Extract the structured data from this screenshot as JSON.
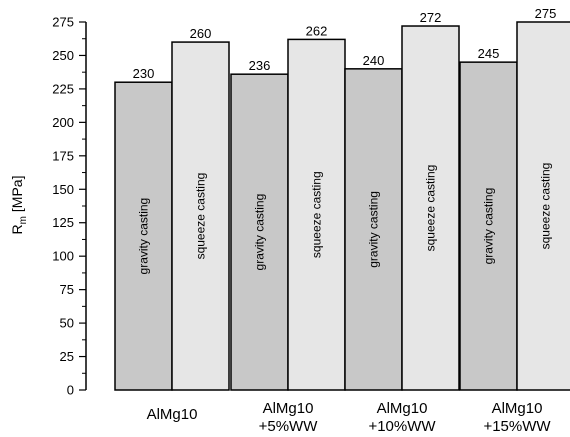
{
  "chart_data": {
    "type": "bar",
    "categories": [
      [
        "AlMg10"
      ],
      [
        "AlMg10",
        "+5%WW"
      ],
      [
        "AlMg10",
        "+10%WW"
      ],
      [
        "AlMg10",
        "+15%WW"
      ]
    ],
    "series": [
      {
        "name": "gravity casting",
        "values": [
          230,
          236,
          240,
          245
        ],
        "color": "#c8c8c8"
      },
      {
        "name": "squeeze casting",
        "values": [
          260,
          262,
          272,
          275
        ],
        "color": "#e6e6e6"
      }
    ],
    "ylabel": {
      "main": "R",
      "sub": "m",
      "unit": " [MPa]"
    },
    "ylim": [
      0,
      275
    ],
    "yticks": [
      0,
      25,
      50,
      75,
      100,
      125,
      150,
      175,
      200,
      225,
      250,
      275
    ],
    "grid": false,
    "legend": "none (series names written inside bars)"
  }
}
